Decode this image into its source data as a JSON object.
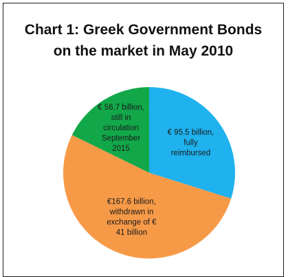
{
  "chart_data": {
    "type": "pie",
    "title_lines": [
      "Chart 1:  Greek Government Bonds",
      "on the market in May 2010"
    ],
    "slices": [
      {
        "value": 95.5,
        "color": "#1fb2ee",
        "label_lines": [
          "€ 95.5 billion,",
          "fully",
          "reimbursed"
        ]
      },
      {
        "value": 167.6,
        "color": "#f79a48",
        "label_lines": [
          "€167.6 billion,",
          "withdrawn in",
          "exchange of €",
          "41 billion"
        ]
      },
      {
        "value": 56.7,
        "color": "#12a84a",
        "label_lines": [
          "€ 56.7 billion,",
          "still in",
          "circulation",
          "September",
          "2015"
        ]
      }
    ],
    "start_angle_deg": 0,
    "direction": "clockwise"
  }
}
